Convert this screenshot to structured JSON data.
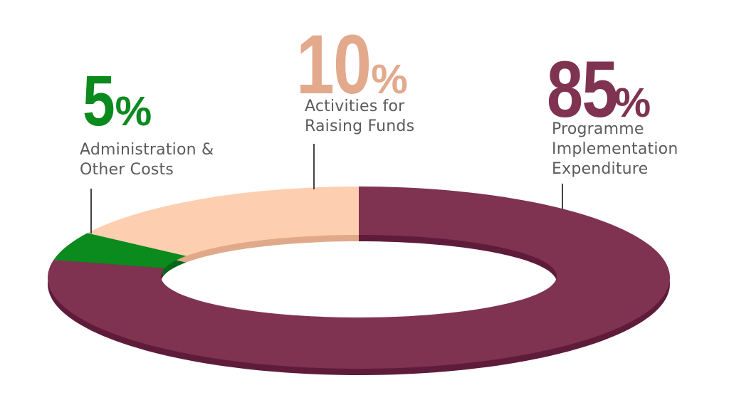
{
  "chart_data": {
    "type": "pie",
    "style": "donut",
    "slices": [
      {
        "label": "Programme Implementation Expenditure",
        "lines": [
          "Programme",
          "Implementation",
          "Expenditure"
        ],
        "value": 85,
        "display": "85",
        "pct": "%",
        "color": "#7f3350",
        "side": "#5f1c3a"
      },
      {
        "label": "Administration & Other Costs",
        "lines": [
          "Administration &",
          "Other Costs"
        ],
        "value": 5,
        "display": "5",
        "pct": "%",
        "color": "#0b8a1e",
        "side": "#06661a"
      },
      {
        "label": "Activities for Raising Funds",
        "lines": [
          "Activities for",
          "Raising Funds"
        ],
        "value": 10,
        "display": "10",
        "pct": "%",
        "color": "#fdcfb0",
        "side": "#e0a98a",
        "text_color": "#e3a98c"
      }
    ],
    "unit": "%"
  }
}
